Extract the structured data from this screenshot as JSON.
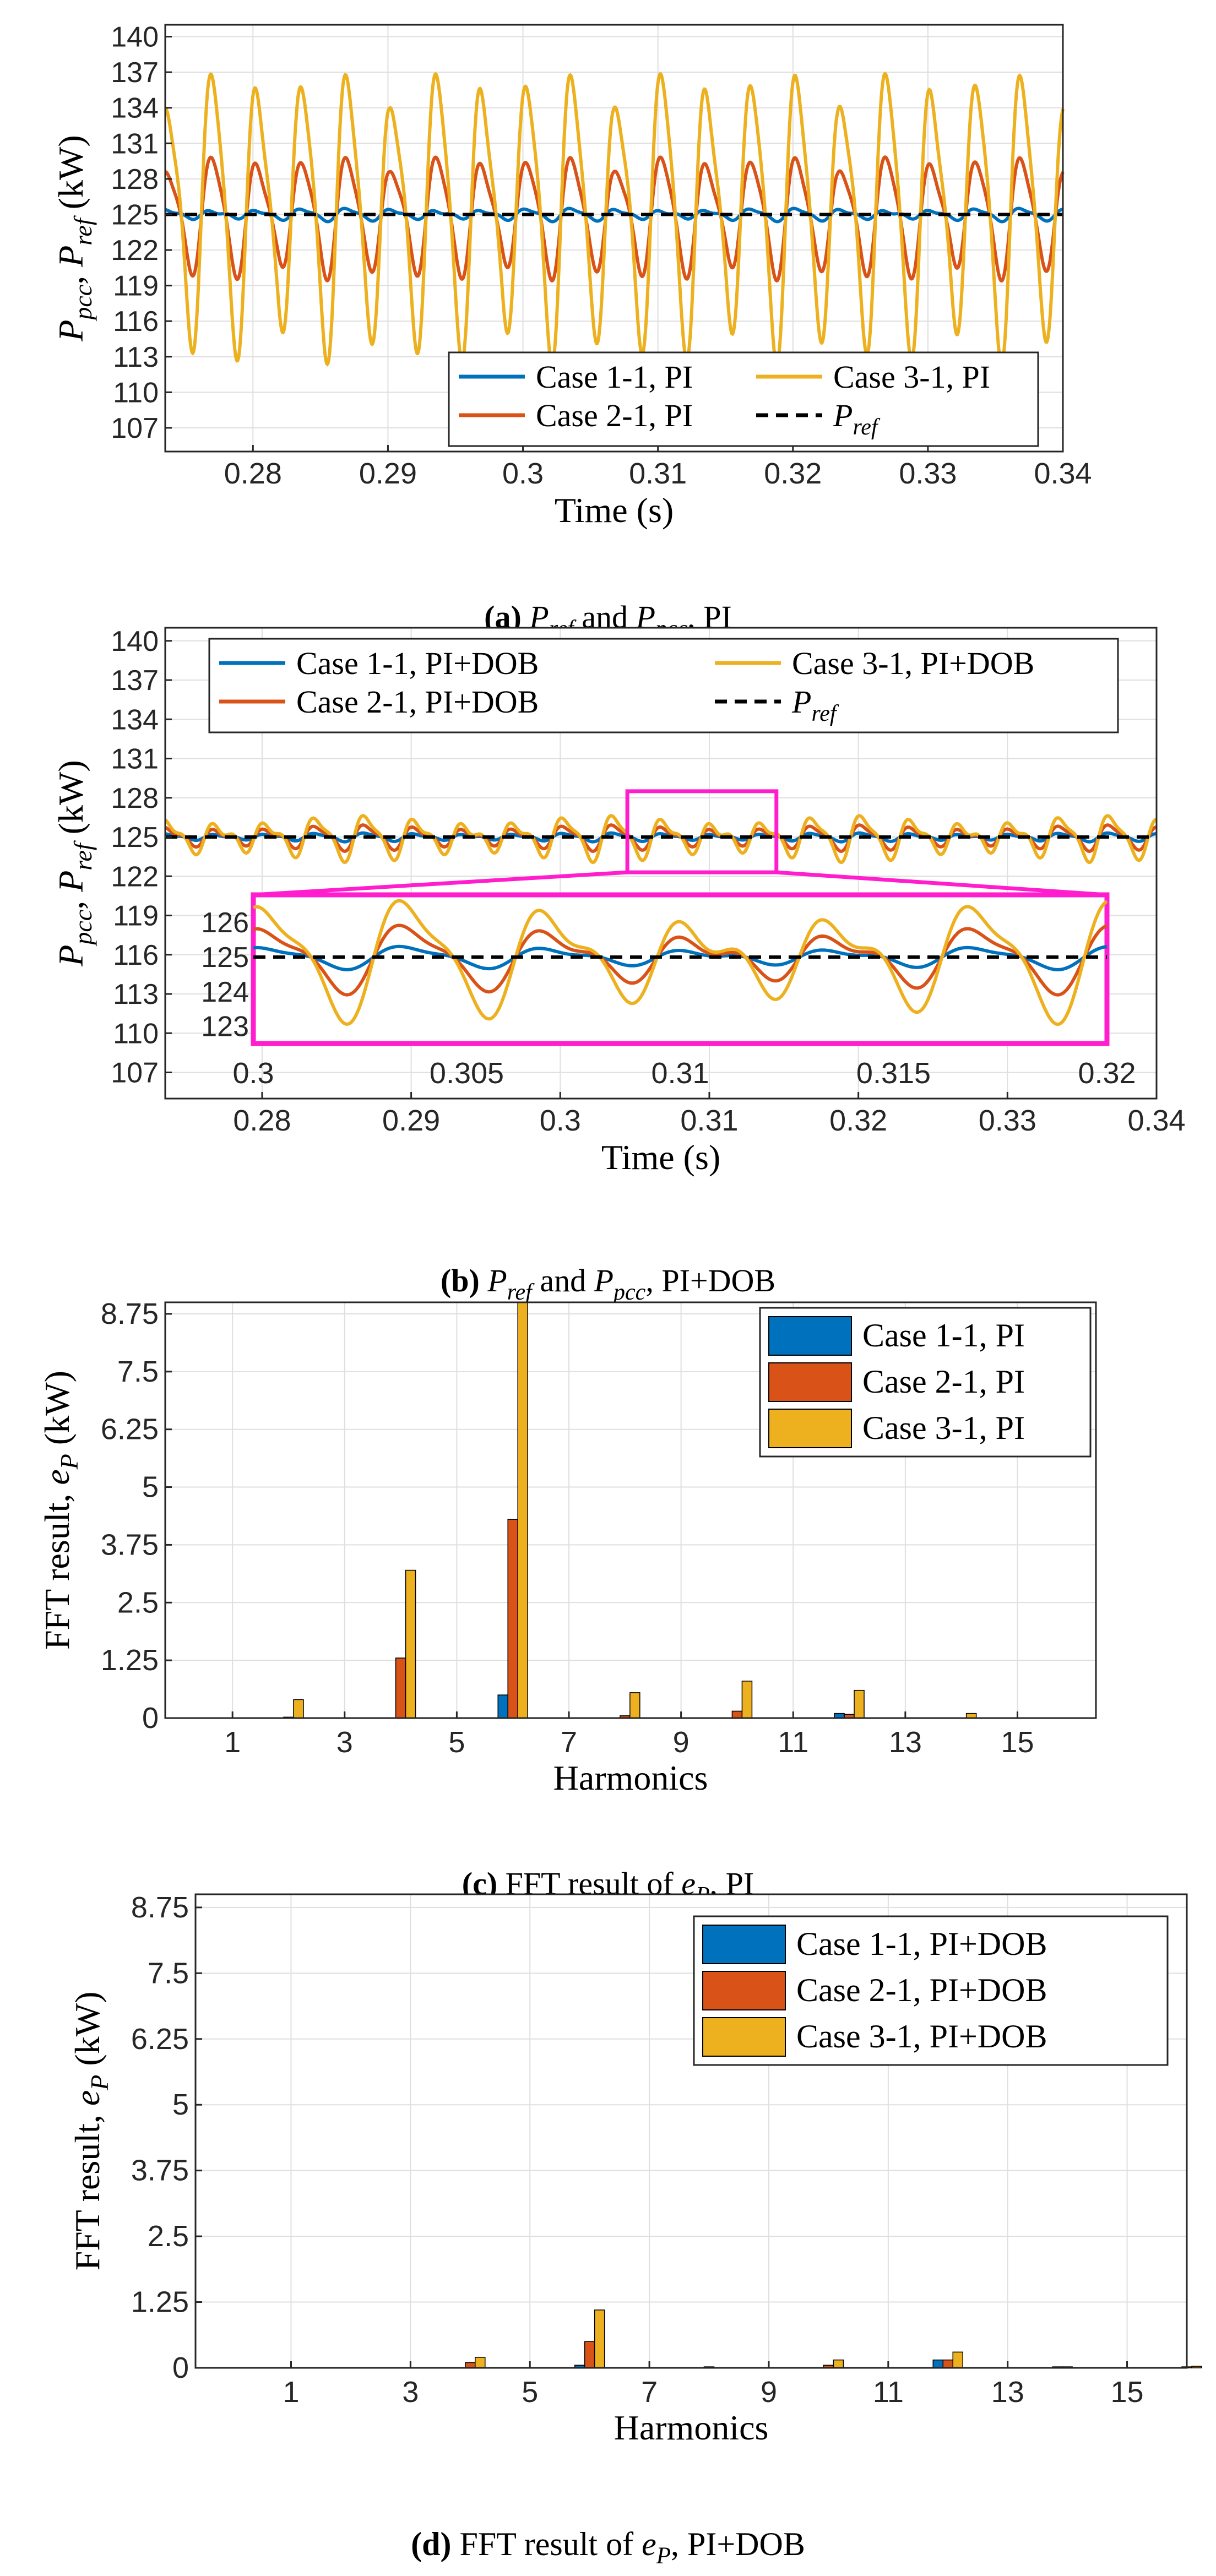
{
  "colors": {
    "case1": "#0072BD",
    "case2": "#D95319",
    "case3": "#EDB120",
    "ref": "#000000",
    "zoom": "#FF1DCE",
    "grid": "#DFDFDF",
    "axis": "#262626"
  },
  "panels": [
    {
      "id": "a",
      "type": "line",
      "ylabel": "P_{pcc}, P_{ref} (kW)",
      "xlabel": "Time (s)",
      "caption": "(a) P_{ref} and P_{pcc}, PI",
      "x_range": [
        0.2735,
        0.34
      ],
      "y_range": [
        105,
        141
      ],
      "x_ticks": [
        "0.28",
        "0.29",
        "0.3",
        "0.31",
        "0.32",
        "0.33",
        "0.34"
      ],
      "y_ticks": [
        "107",
        "110",
        "113",
        "116",
        "119",
        "122",
        "125",
        "128",
        "131",
        "134",
        "137",
        "140"
      ],
      "legend": [
        {
          "label": "Case 1-1, PI",
          "color": "case1",
          "dashed": false
        },
        {
          "label": "Case 3-1, PI",
          "color": "case3",
          "dashed": false
        },
        {
          "label": "Case 2-1, PI",
          "color": "case2",
          "dashed": false
        },
        {
          "label": "P_{ref}",
          "color": "ref",
          "dashed": true
        }
      ]
    },
    {
      "id": "b",
      "type": "line",
      "ylabel": "P_{pcc}, P_{ref} (kW)",
      "xlabel": "Time (s)",
      "caption": "(b) P_{ref} and P_{pcc}, PI+DOB",
      "x_range": [
        0.2735,
        0.34
      ],
      "y_range": [
        105,
        141
      ],
      "x_ticks": [
        "0.28",
        "0.29",
        "0.3",
        "0.31",
        "0.32",
        "0.33",
        "0.34"
      ],
      "y_ticks": [
        "107",
        "110",
        "113",
        "116",
        "119",
        "122",
        "125",
        "128",
        "131",
        "134",
        "137",
        "140"
      ],
      "legend": [
        {
          "label": "Case 1-1, PI+DOB",
          "color": "case1",
          "dashed": false
        },
        {
          "label": "Case 3-1, PI+DOB",
          "color": "case3",
          "dashed": false
        },
        {
          "label": "Case 2-1, PI+DOB",
          "color": "case2",
          "dashed": false
        },
        {
          "label": "P_{ref}",
          "color": "ref",
          "dashed": true
        }
      ],
      "inset": {
        "x_range": [
          0.3,
          0.32
        ],
        "y_range": [
          122.5,
          126.8
        ],
        "x_ticks": [
          "0.3",
          "0.305",
          "0.31",
          "0.315",
          "0.32"
        ],
        "y_ticks": [
          "126",
          "125",
          "124",
          "123"
        ]
      }
    },
    {
      "id": "c",
      "type": "bar",
      "ylabel": "FFT result, e_{P} (kW)",
      "xlabel": "Harmonics",
      "caption": "(c) FFT result of e_{P}, PI",
      "y_range": [
        0,
        9
      ],
      "x_ticks": [
        "1",
        "3",
        "5",
        "7",
        "9",
        "11",
        "13",
        "15"
      ],
      "y_ticks": [
        "0",
        "1.25",
        "2.5",
        "3.75",
        "5",
        "6.25",
        "7.5",
        "8.75"
      ],
      "legend": [
        {
          "label": "Case 1-1, PI",
          "color": "case1"
        },
        {
          "label": "Case 2-1, PI",
          "color": "case2"
        },
        {
          "label": "Case 3-1, PI",
          "color": "case3"
        }
      ]
    },
    {
      "id": "d",
      "type": "bar",
      "ylabel": "FFT result, e_{P} (kW)",
      "xlabel": "Harmonics",
      "caption": "(d) FFT result of e_{P}, PI+DOB",
      "y_range": [
        0,
        9
      ],
      "x_ticks": [
        "1",
        "3",
        "5",
        "7",
        "9",
        "11",
        "13",
        "15"
      ],
      "y_ticks": [
        "0",
        "1.25",
        "2.5",
        "3.75",
        "5",
        "6.25",
        "7.5",
        "8.75"
      ],
      "legend": [
        {
          "label": "Case 1-1, PI+DOB",
          "color": "case1"
        },
        {
          "label": "Case 2-1, PI+DOB",
          "color": "case2"
        },
        {
          "label": "Case 3-1, PI+DOB",
          "color": "case3"
        }
      ]
    }
  ],
  "chart_data": [
    {
      "type": "line",
      "panel": "a",
      "x_range": [
        0.2735,
        0.34
      ],
      "y_range": [
        105,
        141
      ],
      "reference": 125,
      "series": [
        {
          "name": "Case 1-1, PI",
          "color": "case1",
          "mean": 125,
          "amplitude": 0.5,
          "period_s": 0.00333
        },
        {
          "name": "Case 2-1, PI",
          "color": "case2",
          "mean": 125,
          "peak_max": 130,
          "trough_min": 120,
          "period_s": 0.00333
        },
        {
          "name": "Case 3-1, PI",
          "color": "case3",
          "mean": 125.5,
          "peak_max": 137.5,
          "trough_min": 114,
          "period_s": 0.00333
        },
        {
          "name": "P_{ref}",
          "color": "ref",
          "dashed": true,
          "value": 125
        }
      ]
    },
    {
      "type": "line",
      "panel": "b",
      "x_range": [
        0.2735,
        0.34
      ],
      "y_range": [
        105,
        141
      ],
      "reference": 125,
      "series": [
        {
          "name": "Case 1-1, PI+DOB",
          "color": "case1",
          "mean": 125,
          "amplitude": 0.3,
          "period_s": 0.00333
        },
        {
          "name": "Case 2-1, PI+DOB",
          "color": "case2",
          "mean": 125,
          "amplitude": 0.9,
          "period_s": 0.00333
        },
        {
          "name": "Case 3-1, PI+DOB",
          "color": "case3",
          "mean": 125,
          "amplitude": 1.6,
          "period_s": 0.00333
        },
        {
          "name": "P_{ref}",
          "color": "ref",
          "dashed": true,
          "value": 125
        }
      ]
    },
    {
      "type": "bar",
      "panel": "c",
      "categories": [
        2,
        4,
        6,
        8,
        10,
        12,
        14
      ],
      "series": [
        {
          "name": "Case 1-1, PI",
          "color": "case1",
          "values": [
            0.0,
            0.0,
            0.5,
            0.0,
            0.0,
            0.1,
            0.0
          ]
        },
        {
          "name": "Case 2-1, PI",
          "color": "case2",
          "values": [
            0.02,
            1.3,
            4.3,
            0.05,
            0.15,
            0.08,
            0.0
          ]
        },
        {
          "name": "Case 3-1, PI",
          "color": "case3",
          "values": [
            0.4,
            3.2,
            9.0,
            0.55,
            0.8,
            0.6,
            0.1
          ]
        }
      ]
    },
    {
      "type": "bar",
      "panel": "d",
      "categories": [
        4,
        6,
        8,
        10,
        12,
        14,
        16
      ],
      "series": [
        {
          "name": "Case 1-1, PI+DOB",
          "color": "case1",
          "values": [
            0.0,
            0.05,
            0.0,
            0.0,
            0.15,
            0.02,
            0.0
          ]
        },
        {
          "name": "Case 2-1, PI+DOB",
          "color": "case2",
          "values": [
            0.1,
            0.5,
            0.02,
            0.05,
            0.15,
            0.02,
            0.02
          ]
        },
        {
          "name": "Case 3-1, PI+DOB",
          "color": "case3",
          "values": [
            0.2,
            1.1,
            0.0,
            0.15,
            0.3,
            0.0,
            0.03
          ]
        }
      ]
    }
  ]
}
